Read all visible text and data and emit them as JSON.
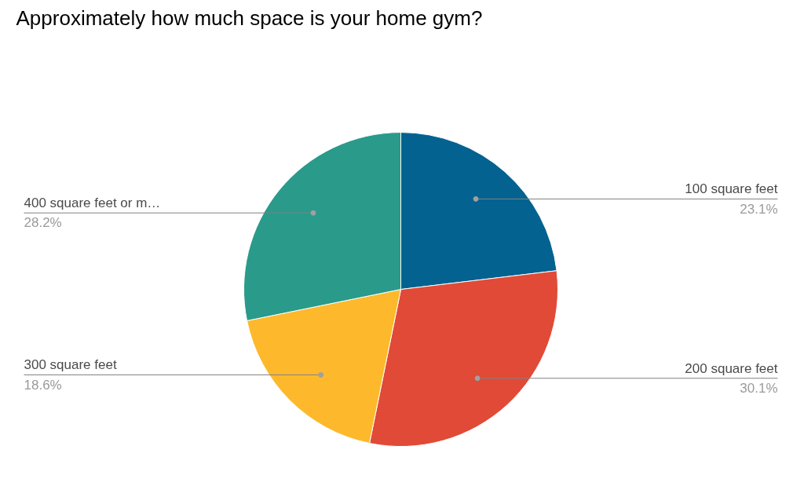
{
  "chart_data": {
    "type": "pie",
    "title": "Approximately how much space is your home gym?",
    "categories": [
      "100 square feet",
      "200 square feet",
      "300 square feet",
      "400 square feet or m…"
    ],
    "values": [
      23.1,
      30.1,
      18.6,
      28.2
    ],
    "colors": [
      "#03628f",
      "#e04a37",
      "#fdb92b",
      "#2a9a8b"
    ],
    "value_labels": [
      "23.1%",
      "30.1%",
      "18.6%",
      "28.2%"
    ]
  }
}
